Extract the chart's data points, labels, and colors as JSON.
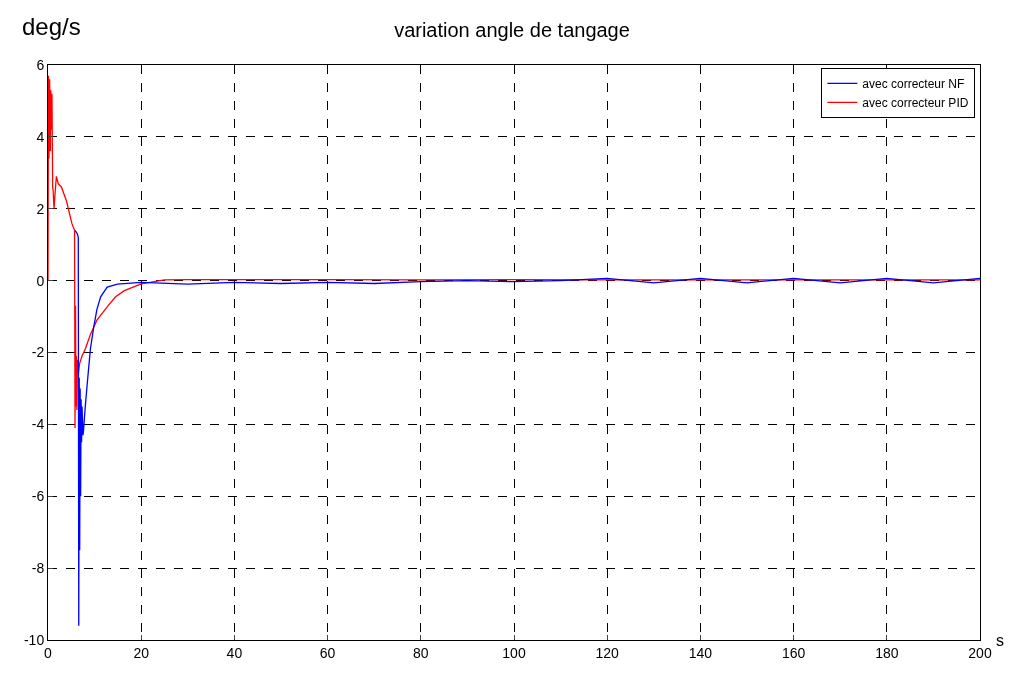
{
  "chart_data": {
    "type": "line",
    "title": "variation angle de tangage",
    "xlabel": "s",
    "ylabel": "deg/s",
    "xlim": [
      0,
      200
    ],
    "ylim": [
      -10,
      6
    ],
    "xticks": [
      0,
      20,
      40,
      60,
      80,
      100,
      120,
      140,
      160,
      180,
      200
    ],
    "yticks": [
      -10,
      -8,
      -6,
      -4,
      -2,
      0,
      2,
      4,
      6
    ],
    "grid": true,
    "legend": "top right",
    "line_style": "solid",
    "marker": "none",
    "series": [
      {
        "name": "avec correcteur NF",
        "color": "#0000ff",
        "x": [
          5.8,
          6.3,
          6.5,
          6.6,
          6.7,
          6.8,
          6.9,
          7.0,
          7.1,
          7.2,
          7.3,
          7.5,
          7.6,
          8.0,
          8.4,
          9.1,
          9.8,
          10.5,
          11.3,
          12.7,
          14.9,
          20,
          30,
          40,
          50,
          60,
          70,
          80,
          90,
          100,
          110,
          120,
          130,
          140,
          150,
          160,
          170,
          180,
          190,
          200
        ],
        "values": [
          1.4,
          1.3,
          1.2,
          -9.6,
          -2.7,
          -7.5,
          -3,
          -6,
          -3.3,
          -4.5,
          -3.5,
          -4.3,
          -4.2,
          -3.5,
          -2.9,
          -1.9,
          -1.3,
          -0.8,
          -0.45,
          -0.18,
          -0.1,
          -0.05,
          -0.1,
          -0.05,
          -0.08,
          -0.05,
          -0.08,
          -0.03,
          0,
          -0.03,
          0,
          0.06,
          -0.06,
          0.06,
          -0.06,
          0.06,
          -0.06,
          0.06,
          -0.06,
          0.06
        ]
      },
      {
        "name": "avec correcteur PID",
        "color": "#ff0000",
        "x": [
          0,
          0.1,
          0.2,
          0.35,
          0.5,
          0.6,
          0.7,
          0.85,
          1.0,
          1.1,
          1.3,
          1.5,
          1.8,
          2.2,
          2.9,
          4.0,
          5.1,
          5.7,
          5.8,
          5.9,
          6.0,
          6.1,
          6.2,
          6.3,
          6.5,
          6.8,
          7.3,
          8.0,
          9.1,
          10.5,
          12.7,
          14.5,
          16.4,
          20,
          25,
          30,
          40,
          60,
          80,
          100,
          120,
          140,
          160,
          180,
          200
        ],
        "values": [
          0,
          5.7,
          3.4,
          5.6,
          3.6,
          5.3,
          4.2,
          5.2,
          2.6,
          2.5,
          2,
          2.4,
          2.9,
          2.7,
          2.6,
          2.2,
          1.6,
          1.4,
          -4.1,
          -0.7,
          -3.5,
          -2.1,
          -3.6,
          -2.2,
          -2.6,
          -2.3,
          -2.1,
          -1.9,
          -1.5,
          -1.1,
          -0.73,
          -0.45,
          -0.28,
          -0.09,
          0.02,
          0.03,
          0.03,
          0.03,
          0.02,
          0.03,
          0.02,
          0.02,
          0.02,
          0.02,
          0.02
        ]
      }
    ]
  }
}
